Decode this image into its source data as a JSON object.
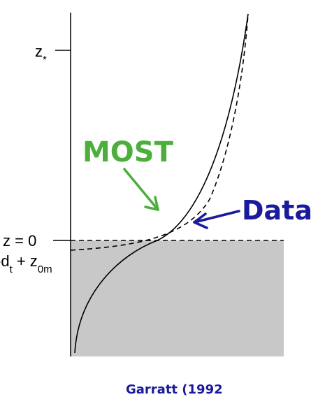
{
  "labels": {
    "z_star": "z",
    "z_star_sub": "*",
    "z_zero": "z = 0",
    "roughness_main": "-d",
    "roughness_t_sub": "t",
    "roughness_mid": " + z",
    "roughness_0m_sub": "0m"
  },
  "callouts": {
    "most": "MOST",
    "data": "Data"
  },
  "citation": "Garratt (1992)",
  "colors": {
    "ground_fill": "#c8c8c8",
    "most_green": "#4caf3c",
    "data_blue": "#1a1a9c",
    "line": "#000000"
  }
}
